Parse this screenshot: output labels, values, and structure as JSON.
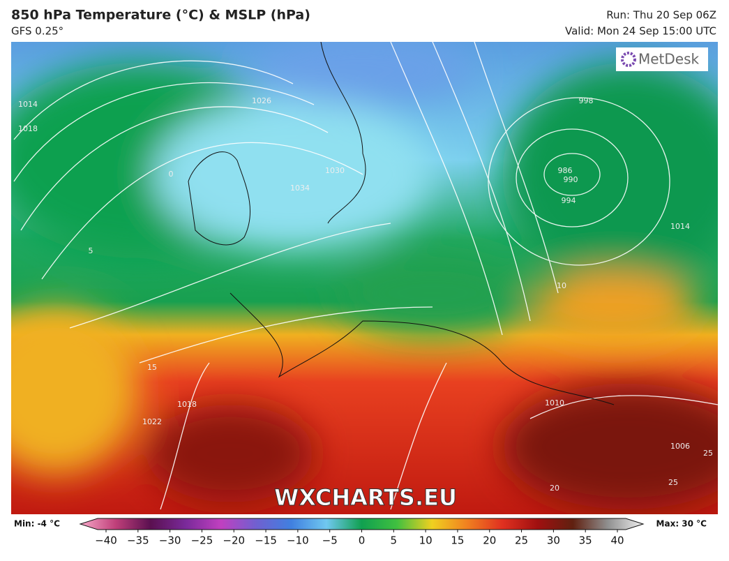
{
  "header": {
    "title": "850 hPa Temperature (°C) & MSLP (hPa)",
    "subtitle": "GFS 0.25°",
    "run": "Run: Thu 20 Sep 06Z",
    "valid": "Valid: Mon 24 Sep 15:00 UTC"
  },
  "logo": "MetDesk",
  "watermark": "WXCHARTS.EU",
  "contour_labels": [
    "1014",
    "1018",
    "0",
    "5",
    "1026",
    "1030",
    "1034",
    "998",
    "986",
    "990",
    "994",
    "1014",
    "10",
    "15",
    "1022",
    "1018",
    "1010",
    "1006",
    "20",
    "25",
    "25"
  ],
  "colorbar": {
    "min": "Min: -4 °C",
    "max": "Max: 30 °C",
    "colors": [
      "#f7a8c8",
      "#c0407a",
      "#5a1050",
      "#7a2a9a",
      "#c040c0",
      "#7060d0",
      "#4080e0",
      "#70c8f0",
      "#10a050",
      "#40c040",
      "#f0d020",
      "#f08020",
      "#e03020",
      "#a01010",
      "#602010",
      "#909090",
      "#f0f0f0"
    ],
    "ticks": [
      {
        "value": -40,
        "label": "−40"
      },
      {
        "value": -35,
        "label": "−35"
      },
      {
        "value": -30,
        "label": "−30"
      },
      {
        "value": -25,
        "label": "−25"
      },
      {
        "value": -20,
        "label": "−20"
      },
      {
        "value": -15,
        "label": "−15"
      },
      {
        "value": -10,
        "label": "−10"
      },
      {
        "value": -5,
        "label": "−5"
      },
      0,
      5,
      10,
      15,
      20,
      25,
      30,
      35,
      40
    ]
  }
}
